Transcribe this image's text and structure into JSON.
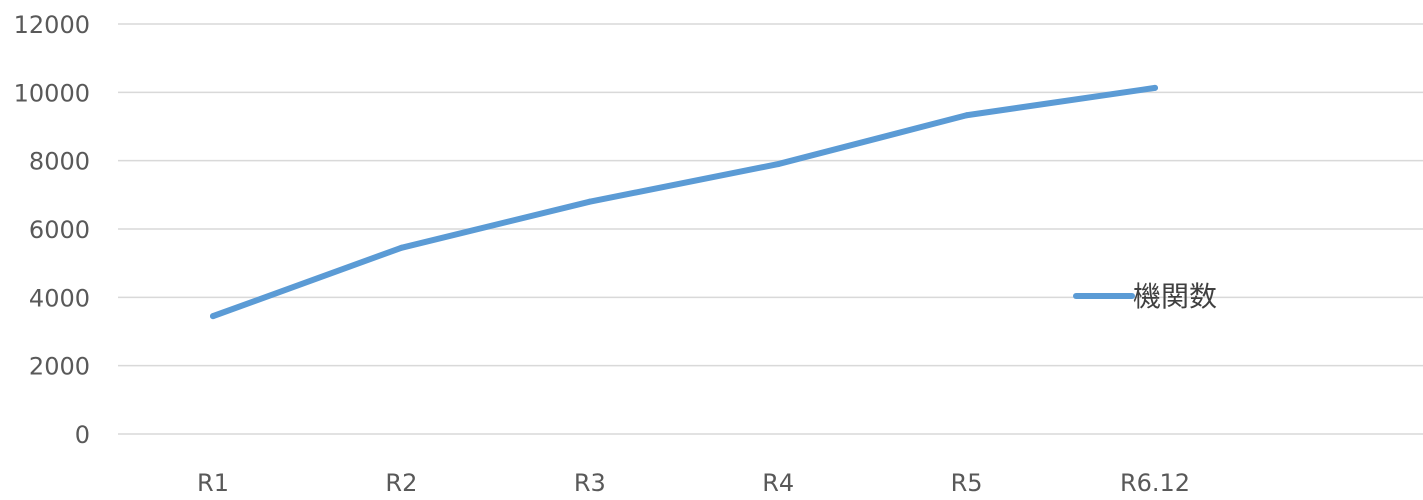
{
  "chart_data": {
    "type": "line",
    "categories": [
      "R1",
      "R2",
      "R3",
      "R4",
      "R5",
      "R6.12"
    ],
    "series": [
      {
        "name": "機関数",
        "color": "#5b9bd5",
        "values": [
          3450,
          5450,
          6800,
          7900,
          9330,
          10130
        ]
      }
    ],
    "ylim": [
      0,
      12000
    ],
    "yticks": [
      0,
      2000,
      4000,
      6000,
      8000,
      10000,
      12000
    ],
    "ytick_labels": [
      "0",
      "2000",
      "4000",
      "6000",
      "8000",
      "10000",
      "12000"
    ],
    "grid": true,
    "legend_position": "right",
    "gridline_color": "#d9d9d9",
    "label_color": "#595959"
  }
}
